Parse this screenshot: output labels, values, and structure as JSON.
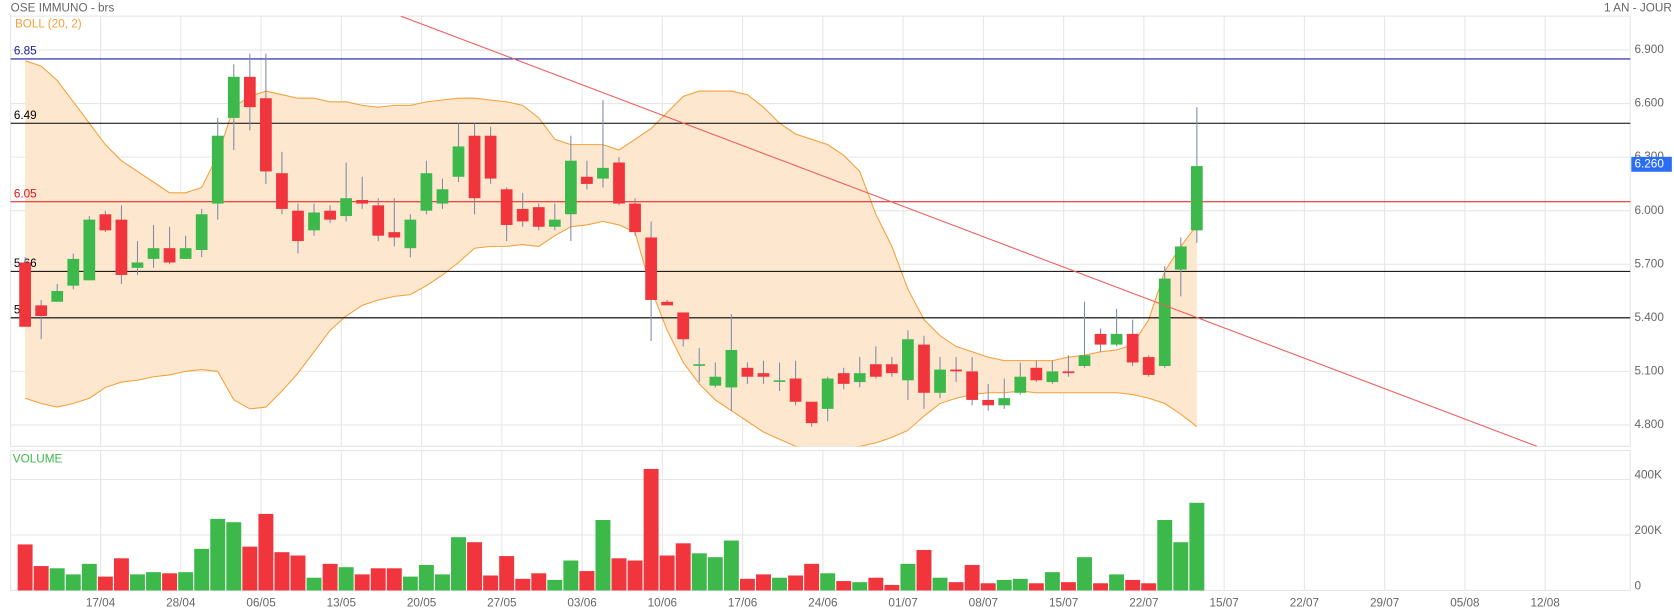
{
  "chart_data": [
    {
      "type": "candlestick",
      "title": "OSE IMMUNO - brs",
      "subtitle": "1 AN - JOUR",
      "indicator_label": "BOLL (20, 2)",
      "open": [
        5.71,
        5.47,
        5.49,
        5.58,
        5.61,
        5.98,
        5.95,
        5.68,
        5.73,
        5.79,
        5.73,
        5.78,
        6.04,
        6.52,
        6.75,
        6.63,
        6.21,
        6.0,
        5.89,
        6.0,
        5.97,
        6.06,
        6.03,
        5.88,
        5.79,
        6.0,
        6.04,
        6.19,
        6.42,
        6.42,
        6.12,
        6.01,
        6.02,
        5.91,
        5.98,
        6.19,
        6.18,
        6.27,
        6.04,
        5.85,
        5.49,
        5.43,
        5.14,
        5.02,
        5.01,
        5.12,
        5.09,
        5.05,
        5.06,
        4.93,
        4.89,
        5.09,
        5.04,
        5.14,
        5.14,
        5.05,
        5.25,
        4.98,
        5.11,
        5.1,
        4.94,
        4.91,
        4.98,
        5.12,
        5.04,
        5.1,
        5.13,
        5.31,
        5.25,
        5.31,
        5.18,
        5.13,
        5.67,
        5.89
      ],
      "high": [
        5.74,
        5.5,
        5.59,
        5.76,
        5.97,
        6.0,
        6.03,
        5.83,
        5.92,
        5.91,
        5.86,
        6.01,
        6.52,
        6.82,
        6.88,
        6.88,
        6.33,
        6.04,
        6.04,
        6.03,
        6.27,
        6.19,
        6.07,
        6.07,
        5.98,
        6.28,
        6.18,
        6.49,
        6.49,
        6.47,
        6.13,
        6.1,
        6.04,
        6.04,
        6.42,
        6.28,
        6.62,
        6.3,
        6.07,
        5.94,
        5.5,
        5.43,
        5.23,
        5.15,
        5.42,
        5.15,
        5.16,
        5.15,
        5.16,
        4.93,
        5.07,
        5.12,
        5.18,
        5.24,
        5.18,
        5.33,
        5.3,
        5.18,
        5.18,
        5.18,
        5.03,
        5.06,
        5.15,
        5.16,
        5.16,
        5.19,
        5.49,
        5.34,
        5.45,
        5.39,
        5.19,
        5.69,
        5.85,
        6.58
      ],
      "low": [
        5.35,
        5.28,
        5.49,
        5.56,
        5.61,
        5.88,
        5.59,
        5.64,
        5.68,
        5.7,
        5.73,
        5.74,
        5.95,
        6.34,
        6.45,
        6.15,
        5.98,
        5.76,
        5.86,
        5.93,
        5.94,
        6.01,
        5.83,
        5.8,
        5.74,
        5.98,
        6.01,
        6.16,
        5.98,
        6.15,
        5.83,
        5.91,
        5.89,
        5.89,
        5.83,
        6.12,
        6.13,
        6.03,
        5.86,
        5.27,
        5.47,
        5.24,
        5.04,
        5.01,
        4.88,
        5.03,
        5.03,
        4.99,
        4.91,
        4.79,
        4.82,
        5.0,
        5.01,
        5.06,
        5.07,
        4.94,
        4.89,
        4.95,
        5.04,
        4.91,
        4.88,
        4.89,
        4.97,
        5.04,
        5.03,
        5.07,
        5.12,
        5.21,
        5.24,
        5.13,
        5.07,
        5.12,
        5.52,
        5.82
      ],
      "close": [
        5.35,
        5.41,
        5.55,
        5.73,
        5.95,
        5.89,
        5.64,
        5.71,
        5.79,
        5.71,
        5.79,
        5.98,
        6.42,
        6.75,
        6.58,
        6.22,
        6.01,
        5.83,
        5.99,
        5.95,
        6.07,
        6.04,
        5.86,
        5.85,
        5.95,
        6.21,
        6.12,
        6.36,
        6.07,
        6.18,
        5.92,
        5.94,
        5.91,
        5.95,
        6.28,
        6.15,
        6.24,
        6.04,
        5.88,
        5.5,
        5.47,
        5.28,
        5.14,
        5.07,
        5.22,
        5.07,
        5.07,
        5.05,
        4.93,
        4.81,
        5.06,
        5.03,
        5.09,
        5.07,
        5.09,
        5.28,
        4.98,
        5.11,
        5.1,
        4.94,
        4.91,
        4.95,
        5.07,
        5.05,
        5.1,
        5.09,
        5.19,
        5.25,
        5.31,
        5.15,
        5.08,
        5.62,
        5.8,
        6.25
      ],
      "up_color": "#3cb94a",
      "down_color": "#f0363c",
      "wick_color": "#7d8cab",
      "bollinger": {
        "color": "#f5a03a",
        "fill": "#fde8cf",
        "upper": [
          6.84,
          6.81,
          6.73,
          6.61,
          6.49,
          6.37,
          6.28,
          6.22,
          6.16,
          6.1,
          6.1,
          6.13,
          6.31,
          6.58,
          6.64,
          6.67,
          6.65,
          6.63,
          6.63,
          6.61,
          6.61,
          6.59,
          6.58,
          6.59,
          6.59,
          6.61,
          6.62,
          6.63,
          6.63,
          6.62,
          6.61,
          6.59,
          6.52,
          6.4,
          6.37,
          6.37,
          6.37,
          6.34,
          6.4,
          6.46,
          6.55,
          6.64,
          6.67,
          6.67,
          6.67,
          6.65,
          6.58,
          6.49,
          6.43,
          6.4,
          6.37,
          6.31,
          6.22,
          5.98,
          5.8,
          5.56,
          5.39,
          5.3,
          5.24,
          5.21,
          5.18,
          5.16,
          5.16,
          5.16,
          5.16,
          5.18,
          5.19,
          5.21,
          5.22,
          5.25,
          5.39,
          5.66,
          5.8,
          5.92
        ],
        "lower": [
          4.95,
          4.92,
          4.9,
          4.92,
          4.95,
          5.01,
          5.04,
          5.05,
          5.07,
          5.08,
          5.1,
          5.11,
          5.1,
          4.94,
          4.89,
          4.9,
          4.99,
          5.09,
          5.21,
          5.33,
          5.41,
          5.47,
          5.5,
          5.52,
          5.53,
          5.58,
          5.64,
          5.71,
          5.79,
          5.8,
          5.8,
          5.81,
          5.8,
          5.86,
          5.91,
          5.92,
          5.94,
          5.92,
          5.88,
          5.56,
          5.33,
          5.15,
          5.03,
          4.94,
          4.88,
          4.82,
          4.76,
          4.72,
          4.68,
          4.67,
          4.67,
          4.67,
          4.68,
          4.7,
          4.73,
          4.77,
          4.85,
          4.92,
          4.95,
          4.97,
          4.98,
          4.98,
          4.99,
          4.98,
          4.98,
          4.98,
          4.98,
          4.98,
          4.98,
          4.97,
          4.95,
          4.92,
          4.86,
          4.79
        ]
      },
      "levels": [
        {
          "value": 6.85,
          "color": "#1a1aa6"
        },
        {
          "value": 6.49,
          "color": "#000000"
        },
        {
          "value": 6.05,
          "color": "#e0141b"
        },
        {
          "value": 5.66,
          "color": "#000000"
        },
        {
          "value": 5.4,
          "color": "#000000"
        }
      ],
      "trendline": {
        "x": [
          23.4,
          94.2
        ],
        "y": [
          7.09,
          4.68
        ],
        "color": "#f05a5a"
      },
      "last_price": {
        "value": 6.26,
        "label": "6.260",
        "color": "#2a6ef5"
      },
      "ylim": [
        4.68,
        7.09
      ],
      "yticks": [
        {
          "value": 4.8,
          "label": "4.800"
        },
        {
          "value": 5.1,
          "label": "5.100"
        },
        {
          "value": 5.4,
          "label": "5.400"
        },
        {
          "value": 5.7,
          "label": "5.700"
        },
        {
          "value": 6.0,
          "label": "6.000"
        },
        {
          "value": 6.3,
          "label": "6.300"
        },
        {
          "value": 6.6,
          "label": "6.600"
        },
        {
          "value": 6.9,
          "label": "6.900"
        }
      ],
      "grid": true
    },
    {
      "type": "bar",
      "title": "VOLUME",
      "values": [
        166000,
        88000,
        80000,
        58000,
        96000,
        50000,
        116000,
        58000,
        66000,
        62000,
        66000,
        150000,
        258000,
        246000,
        158000,
        276000,
        138000,
        126000,
        46000,
        96000,
        84000,
        58000,
        80000,
        80000,
        50000,
        92000,
        58000,
        192000,
        174000,
        54000,
        124000,
        42000,
        62000,
        38000,
        108000,
        70000,
        254000,
        116000,
        108000,
        438000,
        126000,
        170000,
        134000,
        120000,
        180000,
        42000,
        58000,
        46000,
        54000,
        96000,
        62000,
        34000,
        30000,
        46000,
        20000,
        96000,
        146000,
        46000,
        30000,
        92000,
        26000,
        38000,
        42000,
        26000,
        66000,
        30000,
        120000,
        26000,
        58000,
        38000,
        26000,
        254000,
        174000,
        316000
      ],
      "ylim": [
        0,
        504000
      ],
      "yticks": [
        0,
        {
          "value": 200000,
          "label": "200K"
        },
        {
          "value": 400000,
          "label": "400K"
        }
      ],
      "xlim": [
        -0.9,
        100
      ],
      "xticks": [
        {
          "value": 4.7,
          "label": "17/04"
        },
        {
          "value": 9.7,
          "label": "28/04"
        },
        {
          "value": 14.7,
          "label": "06/05"
        },
        {
          "value": 19.7,
          "label": "13/05"
        },
        {
          "value": 24.7,
          "label": "20/05"
        },
        {
          "value": 29.7,
          "label": "27/05"
        },
        {
          "value": 34.7,
          "label": "03/06"
        },
        {
          "value": 39.7,
          "label": "10/06"
        },
        {
          "value": 44.7,
          "label": "17/06"
        },
        {
          "value": 49.7,
          "label": "24/06"
        },
        {
          "value": 54.7,
          "label": "01/07"
        },
        {
          "value": 59.7,
          "label": "08/07"
        },
        {
          "value": 64.7,
          "label": "15/07"
        },
        {
          "value": 69.7,
          "label": "22/07"
        },
        {
          "value": 74.7,
          "label": "15/07"
        },
        {
          "value": 79.7,
          "label": "22/07"
        },
        {
          "value": 84.7,
          "label": "29/07"
        },
        {
          "value": 89.7,
          "label": "05/08"
        },
        {
          "value": 94.7,
          "label": "12/08"
        }
      ],
      "grid": true
    }
  ]
}
